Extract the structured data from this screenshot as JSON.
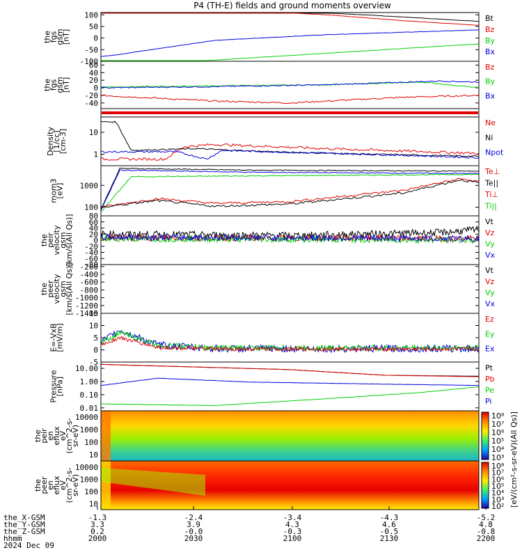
{
  "title": "P4 (TH-E) fields and ground moments overview",
  "colors": {
    "black": "#000000",
    "red": "#e00000",
    "green": "#00d000",
    "blue": "#0000e0"
  },
  "panels": [
    {
      "id": "fgs-gsm",
      "ylabel": [
        "the",
        "fgs",
        "gsm",
        "[nT]"
      ],
      "ticks": [
        "100",
        "50",
        "0",
        "-50",
        "-100"
      ],
      "ylim": [
        -100,
        110
      ],
      "scale": "linear",
      "legend": [
        {
          "label": "Bt",
          "color": "black"
        },
        {
          "label": "Bz",
          "color": "red"
        },
        {
          "label": "By",
          "color": "green"
        },
        {
          "label": "Bx",
          "color": "blue"
        }
      ]
    },
    {
      "id": "fgs-gsm-detail",
      "ylabel": [
        "the",
        "fgs",
        "gsm",
        "[nT]"
      ],
      "ticks": [
        "60",
        "40",
        "20",
        "0",
        "-20",
        "-40"
      ],
      "ylim": [
        -55,
        70
      ],
      "scale": "linear",
      "legend": [
        {
          "label": "Bz",
          "color": "red"
        },
        {
          "label": "By",
          "color": "green"
        },
        {
          "label": "Bx",
          "color": "blue"
        }
      ]
    },
    {
      "id": "flag-bar",
      "ylabel": [],
      "ticks": [],
      "legend": []
    },
    {
      "id": "density",
      "ylabel": [
        "Density",
        "[1/cc]",
        "[cm-3]"
      ],
      "ticks": [
        "10",
        "1"
      ],
      "scale": "log",
      "ylim": [
        0.3,
        50
      ],
      "legend": [
        {
          "label": "Ne",
          "color": "red"
        },
        {
          "label": "Ni",
          "color": "black"
        },
        {
          "label": "Npot",
          "color": "blue"
        }
      ]
    },
    {
      "id": "temperature",
      "ylabel": [
        "mom3",
        "[eV]"
      ],
      "ticks": [
        "1000",
        "100"
      ],
      "scale": "log",
      "ylim": [
        40,
        8000
      ],
      "legend": [
        {
          "label": "Te⊥",
          "color": "red"
        },
        {
          "label": "Te||",
          "color": "black"
        },
        {
          "label": "Ti⊥",
          "color": "red"
        },
        {
          "label": "Ti||",
          "color": "green"
        }
      ]
    },
    {
      "id": "peir-velocity",
      "ylabel": [
        "the",
        "peir",
        "velocity",
        "gsm",
        "[km/s(All Qs)]"
      ],
      "ticks": [
        "80",
        "60",
        "40",
        "20",
        "0",
        "-20",
        "-40",
        "-60",
        "-80"
      ],
      "ylim": [
        -80,
        80
      ],
      "scale": "linear",
      "legend": [
        {
          "label": "Vt",
          "color": "black"
        },
        {
          "label": "Vz",
          "color": "red"
        },
        {
          "label": "Vy",
          "color": "green"
        },
        {
          "label": "Vx",
          "color": "blue"
        }
      ]
    },
    {
      "id": "peer-velocity",
      "ylabel": [
        "the",
        "peer",
        "velocity",
        "gsm",
        "[km/s(All Qs)]"
      ],
      "ticks": [
        "-200",
        "-400",
        "-600",
        "-800",
        "-1000",
        "-1200",
        "-1400"
      ],
      "ylim": [
        -1400,
        -150
      ],
      "scale": "linear",
      "legend": [
        {
          "label": "Vt",
          "color": "black"
        },
        {
          "label": "Vz",
          "color": "red"
        },
        {
          "label": "Vy",
          "color": "green"
        },
        {
          "label": "Vx",
          "color": "blue"
        }
      ]
    },
    {
      "id": "efield",
      "ylabel": [
        "E=-VxB",
        "[mV/m]"
      ],
      "ticks": [
        "15",
        "10",
        "5",
        "0",
        "-5"
      ],
      "ylim": [
        -5,
        15
      ],
      "scale": "linear",
      "legend": [
        {
          "label": "Ez",
          "color": "red"
        },
        {
          "label": "Ey",
          "color": "green"
        },
        {
          "label": "Ex",
          "color": "blue"
        }
      ]
    },
    {
      "id": "pressure",
      "ylabel": [
        "Pressure",
        "[nPa]"
      ],
      "ticks": [
        "10.00",
        "1.00",
        "0.10",
        "0.01"
      ],
      "scale": "log",
      "ylim": [
        0.006,
        30
      ],
      "legend": [
        {
          "label": "Pt",
          "color": "black"
        },
        {
          "label": "Pb",
          "color": "red"
        },
        {
          "label": "Pe",
          "color": "green"
        },
        {
          "label": "Pi",
          "color": "blue"
        }
      ]
    },
    {
      "id": "peir-eflux",
      "ylabel": [
        "the",
        "peir",
        "en",
        "eflux",
        "eV",
        "(cm^2-s-",
        "sr-eV)"
      ],
      "ticks": [
        "10000",
        "1000",
        "100",
        "10"
      ],
      "scale": "log",
      "legend": []
    },
    {
      "id": "peer-eflux",
      "ylabel": [
        "the",
        "peer",
        "en",
        "eflux",
        "eV",
        "(cm^2-s-",
        "sr-eV)"
      ],
      "ticks": [
        "10000",
        "1000",
        "100",
        "10"
      ],
      "scale": "log",
      "legend": []
    }
  ],
  "colorbars": [
    {
      "labels": [
        "10⁸",
        "10⁷",
        "10⁶",
        "10⁵",
        "10⁴",
        "10³"
      ]
    },
    {
      "labels": [
        "10⁸",
        "10⁷",
        "10⁶",
        "10⁵",
        "10⁴",
        "10³",
        "10²"
      ]
    }
  ],
  "colorbar_title": "[eV/(cm²-s-sr-eV)(All Qs)]",
  "x_axis": {
    "row_labels": [
      "the_X-GSM",
      "the_Y-GSM",
      "the_Z-GSM",
      "hhmm",
      "2024 Dec 09"
    ],
    "columns": [
      {
        "X": "-1.3",
        "Y": "3.3",
        "Z": "0.2",
        "hhmm": "2000"
      },
      {
        "X": "-2.4",
        "Y": "3.9",
        "Z": "-0.0",
        "hhmm": "2030"
      },
      {
        "X": "-3.4",
        "Y": "4.3",
        "Z": "-0.3",
        "hhmm": "2100"
      },
      {
        "X": "-4.3",
        "Y": "4.6",
        "Z": "-0.5",
        "hhmm": "2130"
      },
      {
        "X": "-5.2",
        "Y": "4.8",
        "Z": "-0.8",
        "hhmm": "2200"
      }
    ]
  },
  "chart_data": {
    "type": "line",
    "x_unit": "hhmm",
    "x": [
      "2000",
      "2030",
      "2100",
      "2130",
      "2200"
    ],
    "series": [
      {
        "name": "Bt",
        "panel": "fgs-gsm",
        "values": [
          150,
          125,
          100,
          90,
          75
        ]
      },
      {
        "name": "Bz",
        "panel": "fgs-gsm",
        "values": [
          150,
          120,
          95,
          80,
          55
        ]
      },
      {
        "name": "By",
        "panel": "fgs-gsm",
        "values": [
          -150,
          -95,
          -70,
          -50,
          -25
        ]
      },
      {
        "name": "Bx",
        "panel": "fgs-gsm",
        "values": [
          -80,
          5,
          20,
          30,
          40
        ]
      },
      {
        "name": "Ne",
        "panel": "density",
        "values": [
          0.5,
          2.5,
          2,
          1.6,
          1.2
        ]
      },
      {
        "name": "Ni",
        "panel": "density",
        "values": [
          30,
          1.6,
          1.1,
          0.9,
          0.8
        ]
      },
      {
        "name": "Npot",
        "panel": "density",
        "values": [
          1.3,
          1.3,
          1.1,
          0.9,
          0.7
        ]
      },
      {
        "name": "Pt",
        "panel": "pressure",
        "values": [
          20,
          12,
          5,
          2.5,
          2.5
        ]
      },
      {
        "name": "Pb",
        "panel": "pressure",
        "values": [
          20,
          12,
          5,
          2.5,
          2.5
        ]
      },
      {
        "name": "Pe",
        "panel": "pressure",
        "values": [
          0.015,
          0.015,
          0.05,
          0.12,
          0.4
        ]
      },
      {
        "name": "Pi",
        "panel": "pressure",
        "values": [
          0.4,
          1.5,
          0.8,
          0.6,
          0.5
        ]
      }
    ]
  }
}
